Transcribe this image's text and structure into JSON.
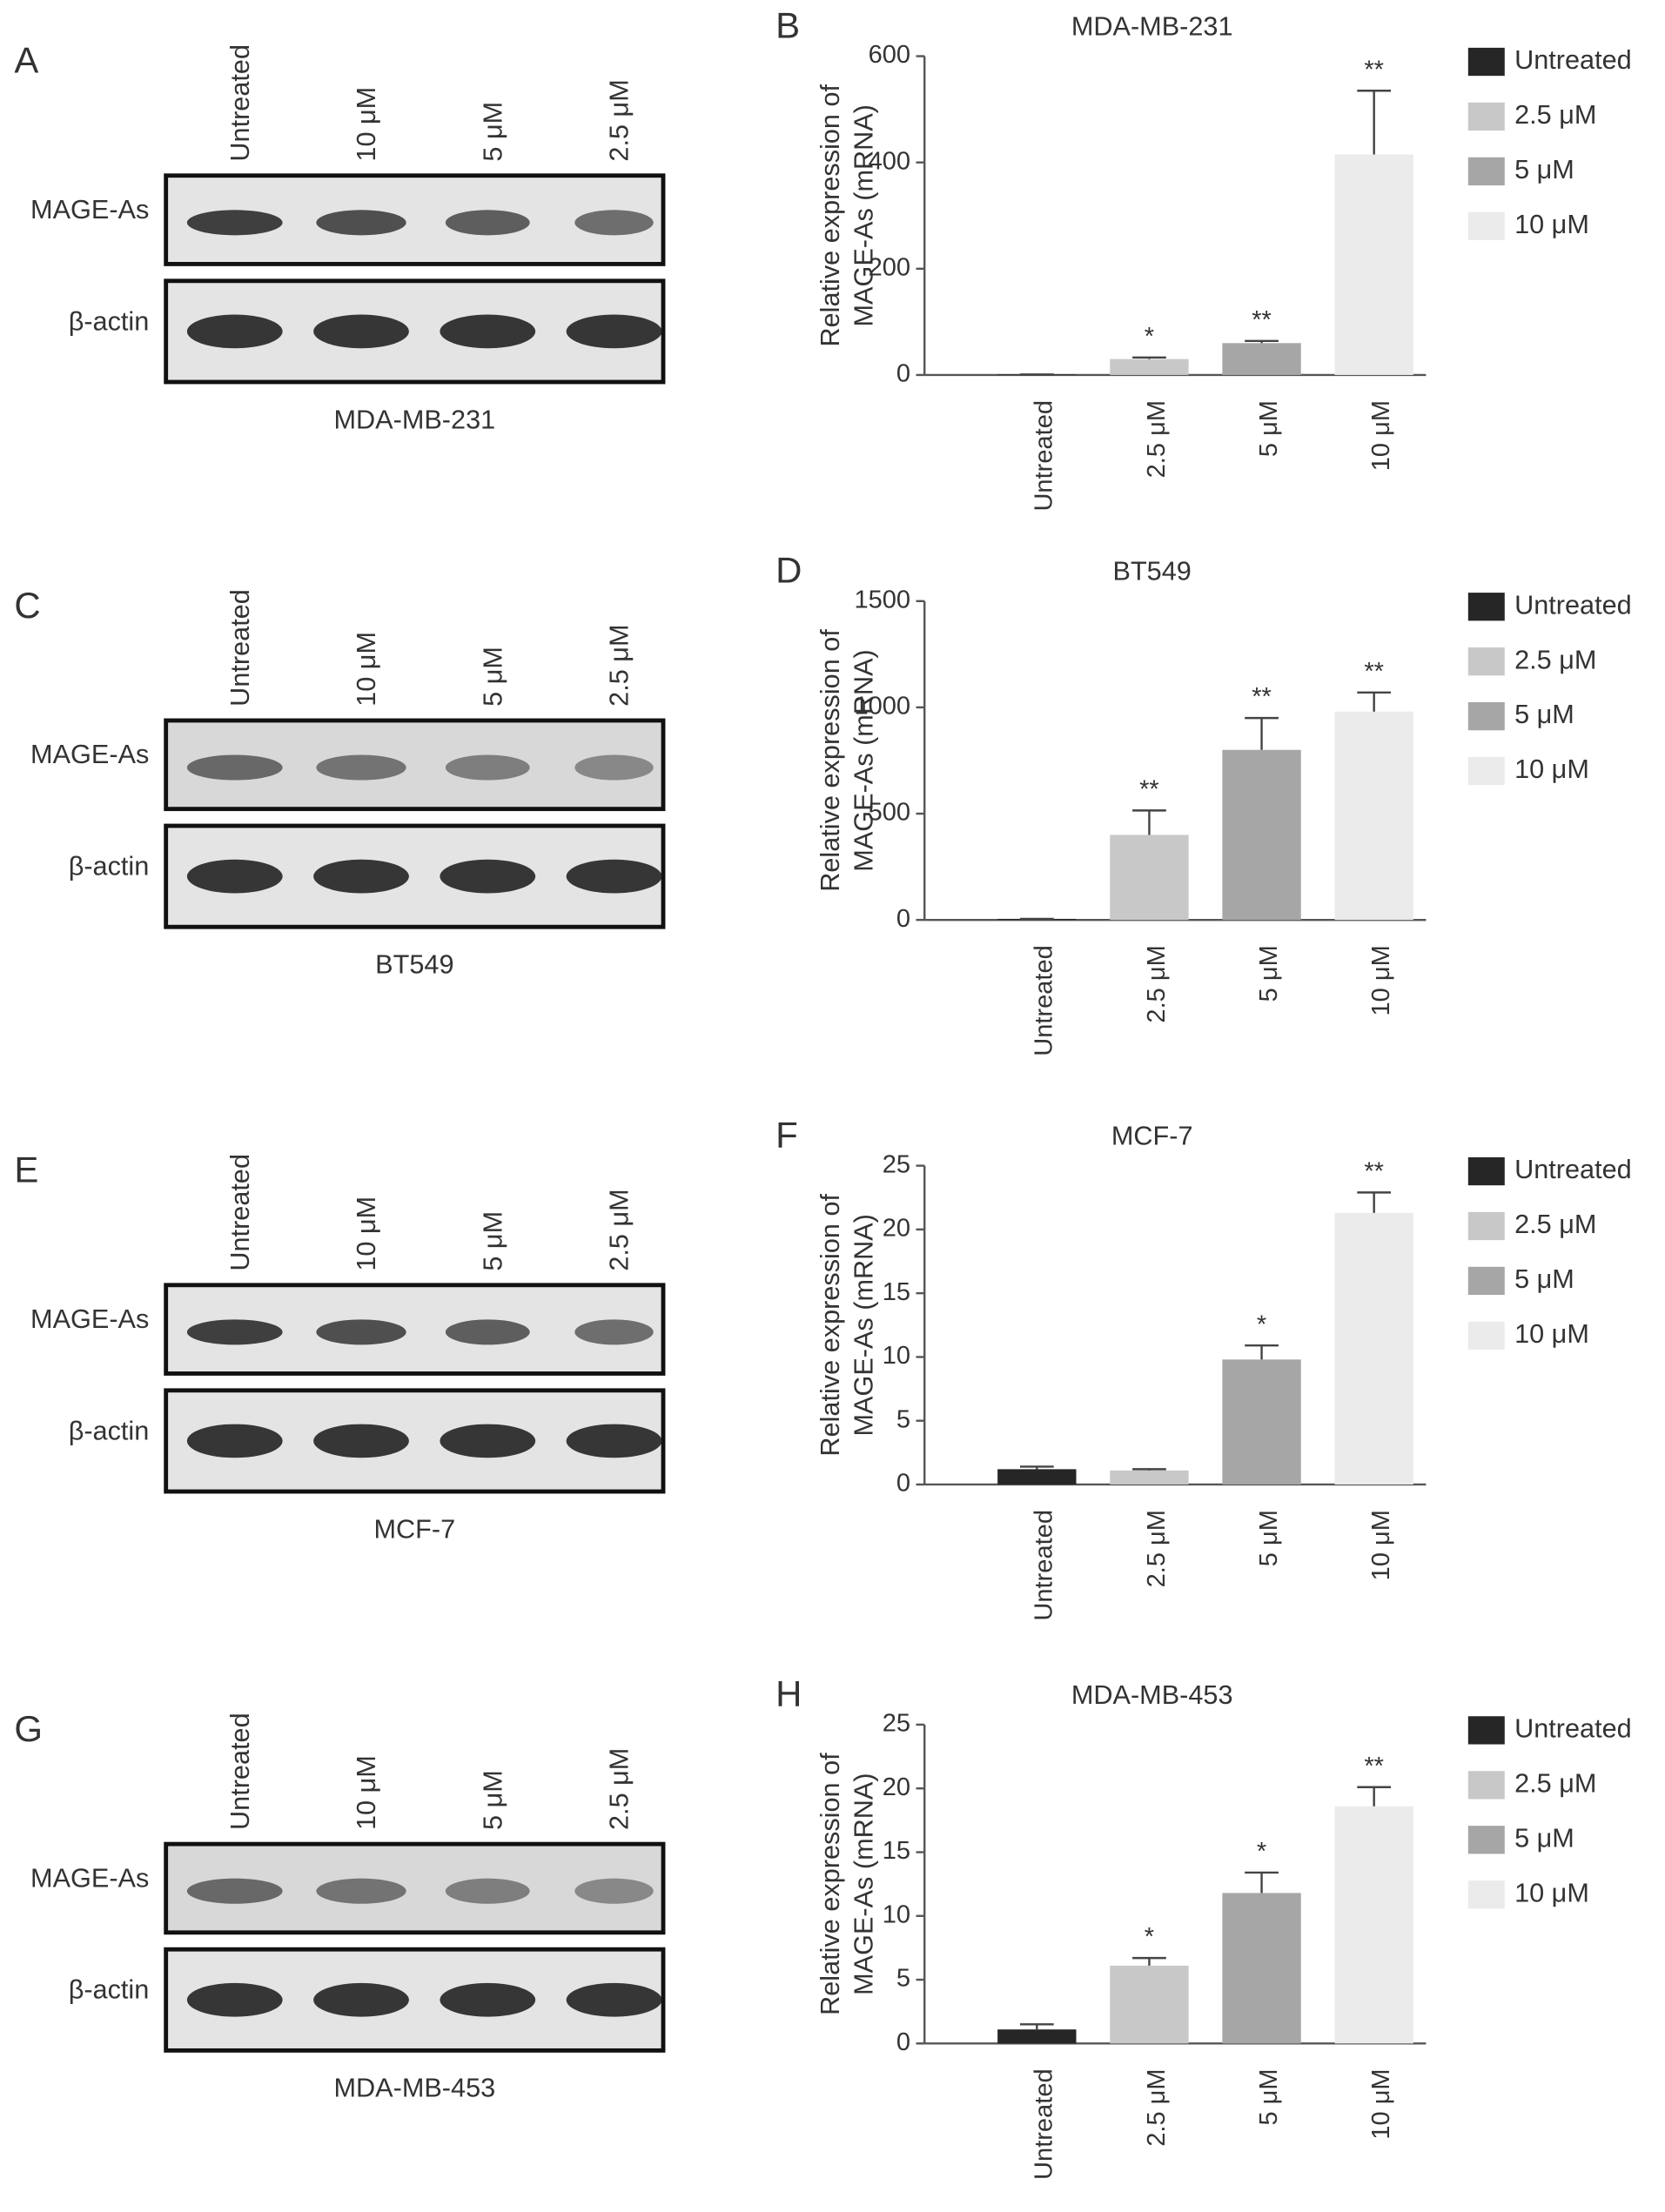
{
  "blots": [
    {
      "panel": "A",
      "lanes": [
        "Untreated",
        "10 μM",
        "5 μM",
        "2.5 μM"
      ],
      "rows": [
        "MAGE-As",
        "β-actin"
      ],
      "caption": "MDA-MB-231"
    },
    {
      "panel": "C",
      "lanes": [
        "Untreated",
        "10 μM",
        "5 μM",
        "2.5 μM"
      ],
      "rows": [
        "MAGE-As",
        "β-actin"
      ],
      "caption": "BT549"
    },
    {
      "panel": "E",
      "lanes": [
        "Untreated",
        "10 μM",
        "5 μM",
        "2.5 μM"
      ],
      "rows": [
        "MAGE-As",
        "β-actin"
      ],
      "caption": "MCF-7"
    },
    {
      "panel": "G",
      "lanes": [
        "Untreated",
        "10 μM",
        "5 μM",
        "2.5 μM"
      ],
      "rows": [
        "MAGE-As",
        "β-actin"
      ],
      "caption": "MDA-MB-453"
    }
  ],
  "chart_data": [
    {
      "panel": "B",
      "type": "bar",
      "title": "MDA-MB-231",
      "y_label": [
        "Relative expression of",
        "MAGE-As (mRNA)"
      ],
      "categories": [
        "Untreated",
        "2.5 μM",
        "5 μM",
        "10 μM"
      ],
      "values": [
        1,
        30,
        60,
        415
      ],
      "errors": [
        0,
        3,
        4,
        120
      ],
      "annotations": [
        null,
        "*",
        "**",
        "**"
      ],
      "colors": [
        "#262626",
        "#c8c8c8",
        "#a6a6a6",
        "#ebebeb"
      ],
      "ylim": [
        0,
        600
      ],
      "yticks": [
        0,
        200,
        400,
        600
      ]
    },
    {
      "panel": "D",
      "type": "bar",
      "title": "BT549",
      "y_label": [
        "Relative expression of",
        "MAGE-As (mRNA)"
      ],
      "categories": [
        "Untreated",
        "2.5 μM",
        "5 μM",
        "10 μM"
      ],
      "values": [
        5,
        400,
        800,
        980
      ],
      "errors": [
        0,
        115,
        150,
        90
      ],
      "annotations": [
        null,
        "**",
        "**",
        "**"
      ],
      "colors": [
        "#262626",
        "#c8c8c8",
        "#a6a6a6",
        "#ebebeb"
      ],
      "ylim": [
        0,
        1500
      ],
      "yticks": [
        0,
        500,
        1000,
        1500
      ]
    },
    {
      "panel": "F",
      "type": "bar",
      "title": "MCF-7",
      "y_label": [
        "Relative expression of",
        "MAGE-As (mRNA)"
      ],
      "categories": [
        "Untreated",
        "2.5 μM",
        "5 μM",
        "10 μM"
      ],
      "values": [
        1.2,
        1.1,
        9.8,
        21.3
      ],
      "errors": [
        0.2,
        0.1,
        1.1,
        1.6
      ],
      "annotations": [
        null,
        null,
        "*",
        "**"
      ],
      "colors": [
        "#262626",
        "#c8c8c8",
        "#a6a6a6",
        "#ebebeb"
      ],
      "ylim": [
        0,
        25
      ],
      "yticks": [
        0,
        5,
        10,
        15,
        20,
        25
      ]
    },
    {
      "panel": "H",
      "type": "bar",
      "title": "MDA-MB-453",
      "y_label": [
        "Relative expression of",
        "MAGE-As (mRNA)"
      ],
      "categories": [
        "Untreated",
        "2.5 μM",
        "5 μM",
        "10 μM"
      ],
      "values": [
        1.1,
        6.1,
        11.8,
        18.6
      ],
      "errors": [
        0.4,
        0.6,
        1.6,
        1.5
      ],
      "annotations": [
        null,
        "*",
        "*",
        "**"
      ],
      "colors": [
        "#262626",
        "#c8c8c8",
        "#a6a6a6",
        "#ebebeb"
      ],
      "ylim": [
        0,
        25
      ],
      "yticks": [
        0,
        5,
        10,
        15,
        20,
        25
      ]
    }
  ]
}
